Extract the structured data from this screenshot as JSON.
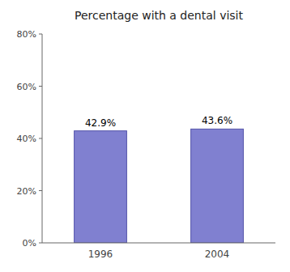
{
  "chart_data": {
    "type": "bar",
    "title": "Percentage with a dental visit",
    "categories": [
      "1996",
      "2004"
    ],
    "values": [
      42.9,
      43.6
    ],
    "value_labels": [
      "42.9%",
      "43.6%"
    ],
    "data_labels": true,
    "color": "#8080d0",
    "ylim": [
      0,
      80
    ],
    "yticks": [
      {
        "value": 0,
        "label": "0%"
      },
      {
        "value": 20,
        "label": "20%"
      },
      {
        "value": 40,
        "label": "40%"
      },
      {
        "value": 60,
        "label": "60%"
      },
      {
        "value": 80,
        "label": "80%"
      }
    ],
    "grid": false
  }
}
